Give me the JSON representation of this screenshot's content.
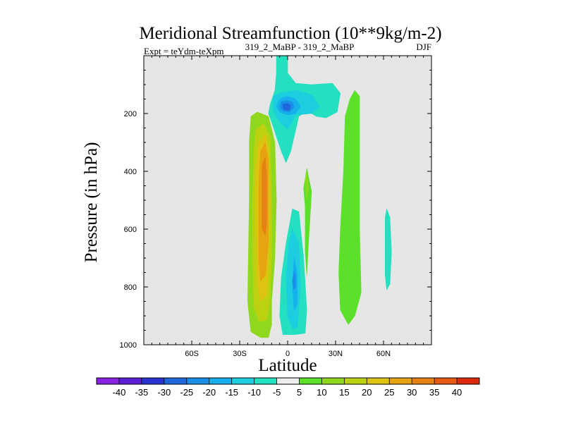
{
  "chart_data": {
    "type": "contour",
    "title": "Meridional Streamfunction (10**9kg/m-2)",
    "subtitle_left": "Expt = teYdm-teXpm",
    "subtitle_center": "319_2_MaBP - 319_2_MaBP",
    "subtitle_right": "DJF",
    "xlabel": "Latitude",
    "ylabel": "Pressure (in hPa)",
    "xlim": [
      -90,
      90
    ],
    "ylim": [
      1000,
      0
    ],
    "x_ticks": [
      {
        "value": -60,
        "label": "60S"
      },
      {
        "value": -30,
        "label": "30S"
      },
      {
        "value": 0,
        "label": "0"
      },
      {
        "value": 30,
        "label": "30N"
      },
      {
        "value": 60,
        "label": "60N"
      }
    ],
    "y_ticks": [
      {
        "value": 200,
        "label": "200"
      },
      {
        "value": 400,
        "label": "400"
      },
      {
        "value": 600,
        "label": "600"
      },
      {
        "value": 800,
        "label": "800"
      },
      {
        "value": 1000,
        "label": "1000"
      }
    ],
    "background_color": "#e6e6e6",
    "colorbar": {
      "levels": [
        "-40",
        "-35",
        "-30",
        "-25",
        "-20",
        "-15",
        "-10",
        "-5",
        "5",
        "10",
        "15",
        "20",
        "25",
        "30",
        "35",
        "40"
      ],
      "colors": [
        "#8a22e6",
        "#5a1fd6",
        "#2a34d2",
        "#1e68dc",
        "#1a8ee6",
        "#16b0ec",
        "#1dcde0",
        "#22e0c0",
        "#ececec",
        "#5de02a",
        "#8fd81e",
        "#bcd210",
        "#dcc410",
        "#e6a410",
        "#e68214",
        "#e65a12",
        "#de2a0c"
      ]
    },
    "regions": [
      {
        "name": "sh-cell-outer",
        "color": "#8fd81e",
        "points": [
          [
            -23,
            210
          ],
          [
            -19,
            195
          ],
          [
            -12,
            210
          ],
          [
            -8,
            300
          ],
          [
            -7,
            500
          ],
          [
            -8,
            700
          ],
          [
            -10,
            850
          ],
          [
            -10,
            930
          ],
          [
            -12,
            975
          ],
          [
            -17,
            975
          ],
          [
            -23,
            955
          ],
          [
            -25,
            850
          ],
          [
            -24,
            500
          ],
          [
            -24,
            300
          ]
        ]
      },
      {
        "name": "sh-cell-15",
        "color": "#bcd210",
        "points": [
          [
            -20,
            255
          ],
          [
            -15,
            235
          ],
          [
            -11,
            280
          ],
          [
            -10,
            500
          ],
          [
            -10,
            700
          ],
          [
            -11,
            850
          ],
          [
            -13,
            915
          ],
          [
            -18,
            920
          ],
          [
            -21,
            870
          ],
          [
            -22,
            700
          ],
          [
            -22,
            500
          ],
          [
            -21,
            330
          ]
        ]
      },
      {
        "name": "sh-cell-20",
        "color": "#dcc410",
        "points": [
          [
            -18,
            300
          ],
          [
            -14,
            270
          ],
          [
            -12,
            330
          ],
          [
            -11,
            500
          ],
          [
            -12,
            700
          ],
          [
            -13,
            830
          ],
          [
            -17,
            850
          ],
          [
            -19,
            780
          ],
          [
            -20,
            600
          ],
          [
            -20,
            400
          ]
        ]
      },
      {
        "name": "sh-cell-25",
        "color": "#e6a410",
        "points": [
          [
            -17,
            330
          ],
          [
            -14,
            300
          ],
          [
            -12,
            360
          ],
          [
            -12,
            500
          ],
          [
            -12,
            650
          ],
          [
            -14,
            760
          ],
          [
            -17,
            780
          ],
          [
            -18,
            700
          ],
          [
            -18,
            450
          ]
        ]
      },
      {
        "name": "sh-cell-30",
        "color": "#e68214",
        "points": [
          [
            -16,
            380
          ],
          [
            -14,
            350
          ],
          [
            -13,
            420
          ],
          [
            -13,
            580
          ],
          [
            -14,
            620
          ],
          [
            -16,
            600
          ],
          [
            -16,
            450
          ]
        ]
      },
      {
        "name": "upper-neg-outer",
        "color": "#22e0c0",
        "points": [
          [
            -7,
            0
          ],
          [
            0,
            0
          ],
          [
            0,
            60
          ],
          [
            5,
            95
          ],
          [
            15,
            100
          ],
          [
            28,
            95
          ],
          [
            33,
            130
          ],
          [
            31,
            195
          ],
          [
            24,
            215
          ],
          [
            18,
            210
          ],
          [
            12,
            190
          ],
          [
            7,
            210
          ],
          [
            2,
            330
          ],
          [
            -1,
            370
          ],
          [
            -4,
            330
          ],
          [
            -10,
            230
          ],
          [
            -12,
            200
          ],
          [
            -11,
            170
          ],
          [
            -8,
            120
          ],
          [
            -7,
            60
          ]
        ]
      },
      {
        "name": "upper-neg-10",
        "color": "#1dcde0",
        "points": [
          [
            -9,
            140
          ],
          [
            -5,
            130
          ],
          [
            5,
            120
          ],
          [
            15,
            135
          ],
          [
            20,
            175
          ],
          [
            15,
            200
          ],
          [
            5,
            205
          ],
          [
            0,
            255
          ],
          [
            -5,
            230
          ],
          [
            -9,
            190
          ]
        ]
      },
      {
        "name": "upper-neg-15",
        "color": "#16b0ec",
        "points": [
          [
            -5,
            150
          ],
          [
            0,
            140
          ],
          [
            5,
            150
          ],
          [
            8,
            175
          ],
          [
            5,
            200
          ],
          [
            0,
            205
          ],
          [
            -5,
            195
          ],
          [
            -7,
            175
          ]
        ]
      },
      {
        "name": "upper-neg-20",
        "color": "#1a8ee6",
        "points": [
          [
            -4,
            160
          ],
          [
            -1,
            155
          ],
          [
            3,
            160
          ],
          [
            4,
            178
          ],
          [
            1,
            195
          ],
          [
            -3,
            192
          ],
          [
            -5,
            178
          ]
        ]
      },
      {
        "name": "upper-neg-25",
        "color": "#1e68dc",
        "points": [
          [
            -3,
            168
          ],
          [
            0,
            165
          ],
          [
            2,
            172
          ],
          [
            1,
            188
          ],
          [
            -2,
            188
          ],
          [
            -3,
            178
          ]
        ]
      },
      {
        "name": "lower-neg-outer",
        "color": "#22e0c0",
        "points": [
          [
            3,
            530
          ],
          [
            7,
            540
          ],
          [
            10,
            700
          ],
          [
            12,
            880
          ],
          [
            11,
            960
          ],
          [
            5,
            965
          ],
          [
            -3,
            965
          ],
          [
            -5,
            900
          ],
          [
            -4,
            770
          ],
          [
            -1,
            650
          ]
        ]
      },
      {
        "name": "lower-neg-10",
        "color": "#1dcde0",
        "points": [
          [
            3,
            600
          ],
          [
            7,
            650
          ],
          [
            8,
            800
          ],
          [
            6,
            940
          ],
          [
            3,
            945
          ],
          [
            0,
            900
          ],
          [
            -1,
            760
          ],
          [
            1,
            640
          ]
        ]
      },
      {
        "name": "lower-neg-15",
        "color": "#16b0ec",
        "points": [
          [
            4,
            700
          ],
          [
            6,
            750
          ],
          [
            6,
            860
          ],
          [
            4,
            880
          ],
          [
            3,
            800
          ]
        ]
      },
      {
        "name": "lower-neg-20",
        "color": "#1a8ee6",
        "points": [
          [
            4,
            745
          ],
          [
            5,
            760
          ],
          [
            5,
            800
          ],
          [
            4,
            810
          ],
          [
            3,
            780
          ]
        ]
      },
      {
        "name": "nh-strip-1",
        "color": "#5de02a",
        "points": [
          [
            10,
            460
          ],
          [
            12,
            390
          ],
          [
            15,
            470
          ],
          [
            13,
            650
          ],
          [
            12,
            760
          ],
          [
            11,
            680
          ],
          [
            11,
            520
          ]
        ]
      },
      {
        "name": "nh-strip-1-inner",
        "color": "#8fd81e",
        "points": [
          [
            11,
            430
          ],
          [
            12,
            400
          ],
          [
            13,
            460
          ],
          [
            12,
            500
          ]
        ]
      },
      {
        "name": "nh-strip-2",
        "color": "#5de02a",
        "points": [
          [
            36,
            210
          ],
          [
            39,
            150
          ],
          [
            42,
            120
          ],
          [
            45,
            140
          ],
          [
            45,
            250
          ],
          [
            45,
            600
          ],
          [
            46,
            820
          ],
          [
            42,
            900
          ],
          [
            38,
            930
          ],
          [
            33,
            880
          ],
          [
            32,
            750
          ],
          [
            33,
            600
          ],
          [
            35,
            400
          ]
        ]
      },
      {
        "name": "nh-neg-small",
        "color": "#22e0c0",
        "points": [
          [
            61,
            560
          ],
          [
            62,
            530
          ],
          [
            64,
            560
          ],
          [
            65,
            680
          ],
          [
            64,
            790
          ],
          [
            62,
            810
          ],
          [
            61,
            760
          ],
          [
            61,
            650
          ]
        ]
      }
    ]
  }
}
